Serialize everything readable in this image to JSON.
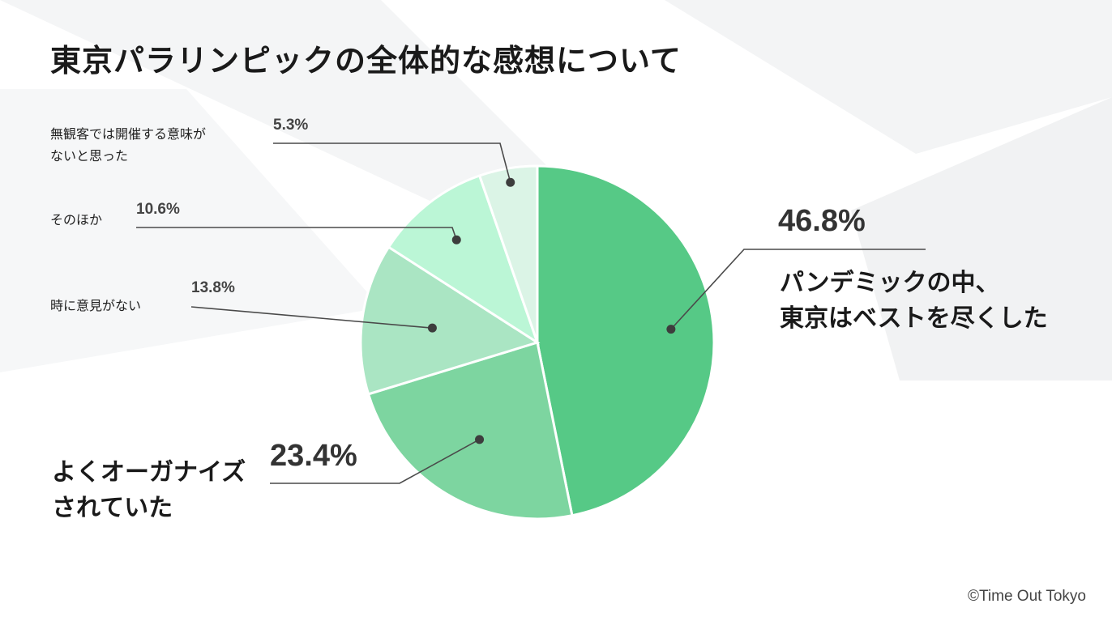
{
  "title": "東京パラリンピックの全体的な感想について",
  "copyright": "©Time Out Tokyo",
  "chart_data": {
    "type": "pie",
    "unit": "%",
    "start": "12 o'clock, clockwise",
    "slices": [
      {
        "label_lines": [
          "パンデミックの中、",
          "東京はベストを尽くした"
        ],
        "value": 46.8,
        "display": "46.8%",
        "color": "#56c986"
      },
      {
        "label_lines": [
          "よくオーガナイズ",
          "されていた"
        ],
        "value": 23.4,
        "display": "23.4%",
        "color": "#7dd5a0"
      },
      {
        "label_lines": [
          "時に意見がない"
        ],
        "value": 13.8,
        "display": "13.8%",
        "color": "#aae5c3"
      },
      {
        "label_lines": [
          "そのほか"
        ],
        "value": 10.6,
        "display": "10.6%",
        "color": "#bbf6d6"
      },
      {
        "label_lines": [
          "無観客では開催する意味が",
          "ないと思った"
        ],
        "value": 5.3,
        "display": "5.3%",
        "color": "#dbf4e6"
      }
    ]
  }
}
